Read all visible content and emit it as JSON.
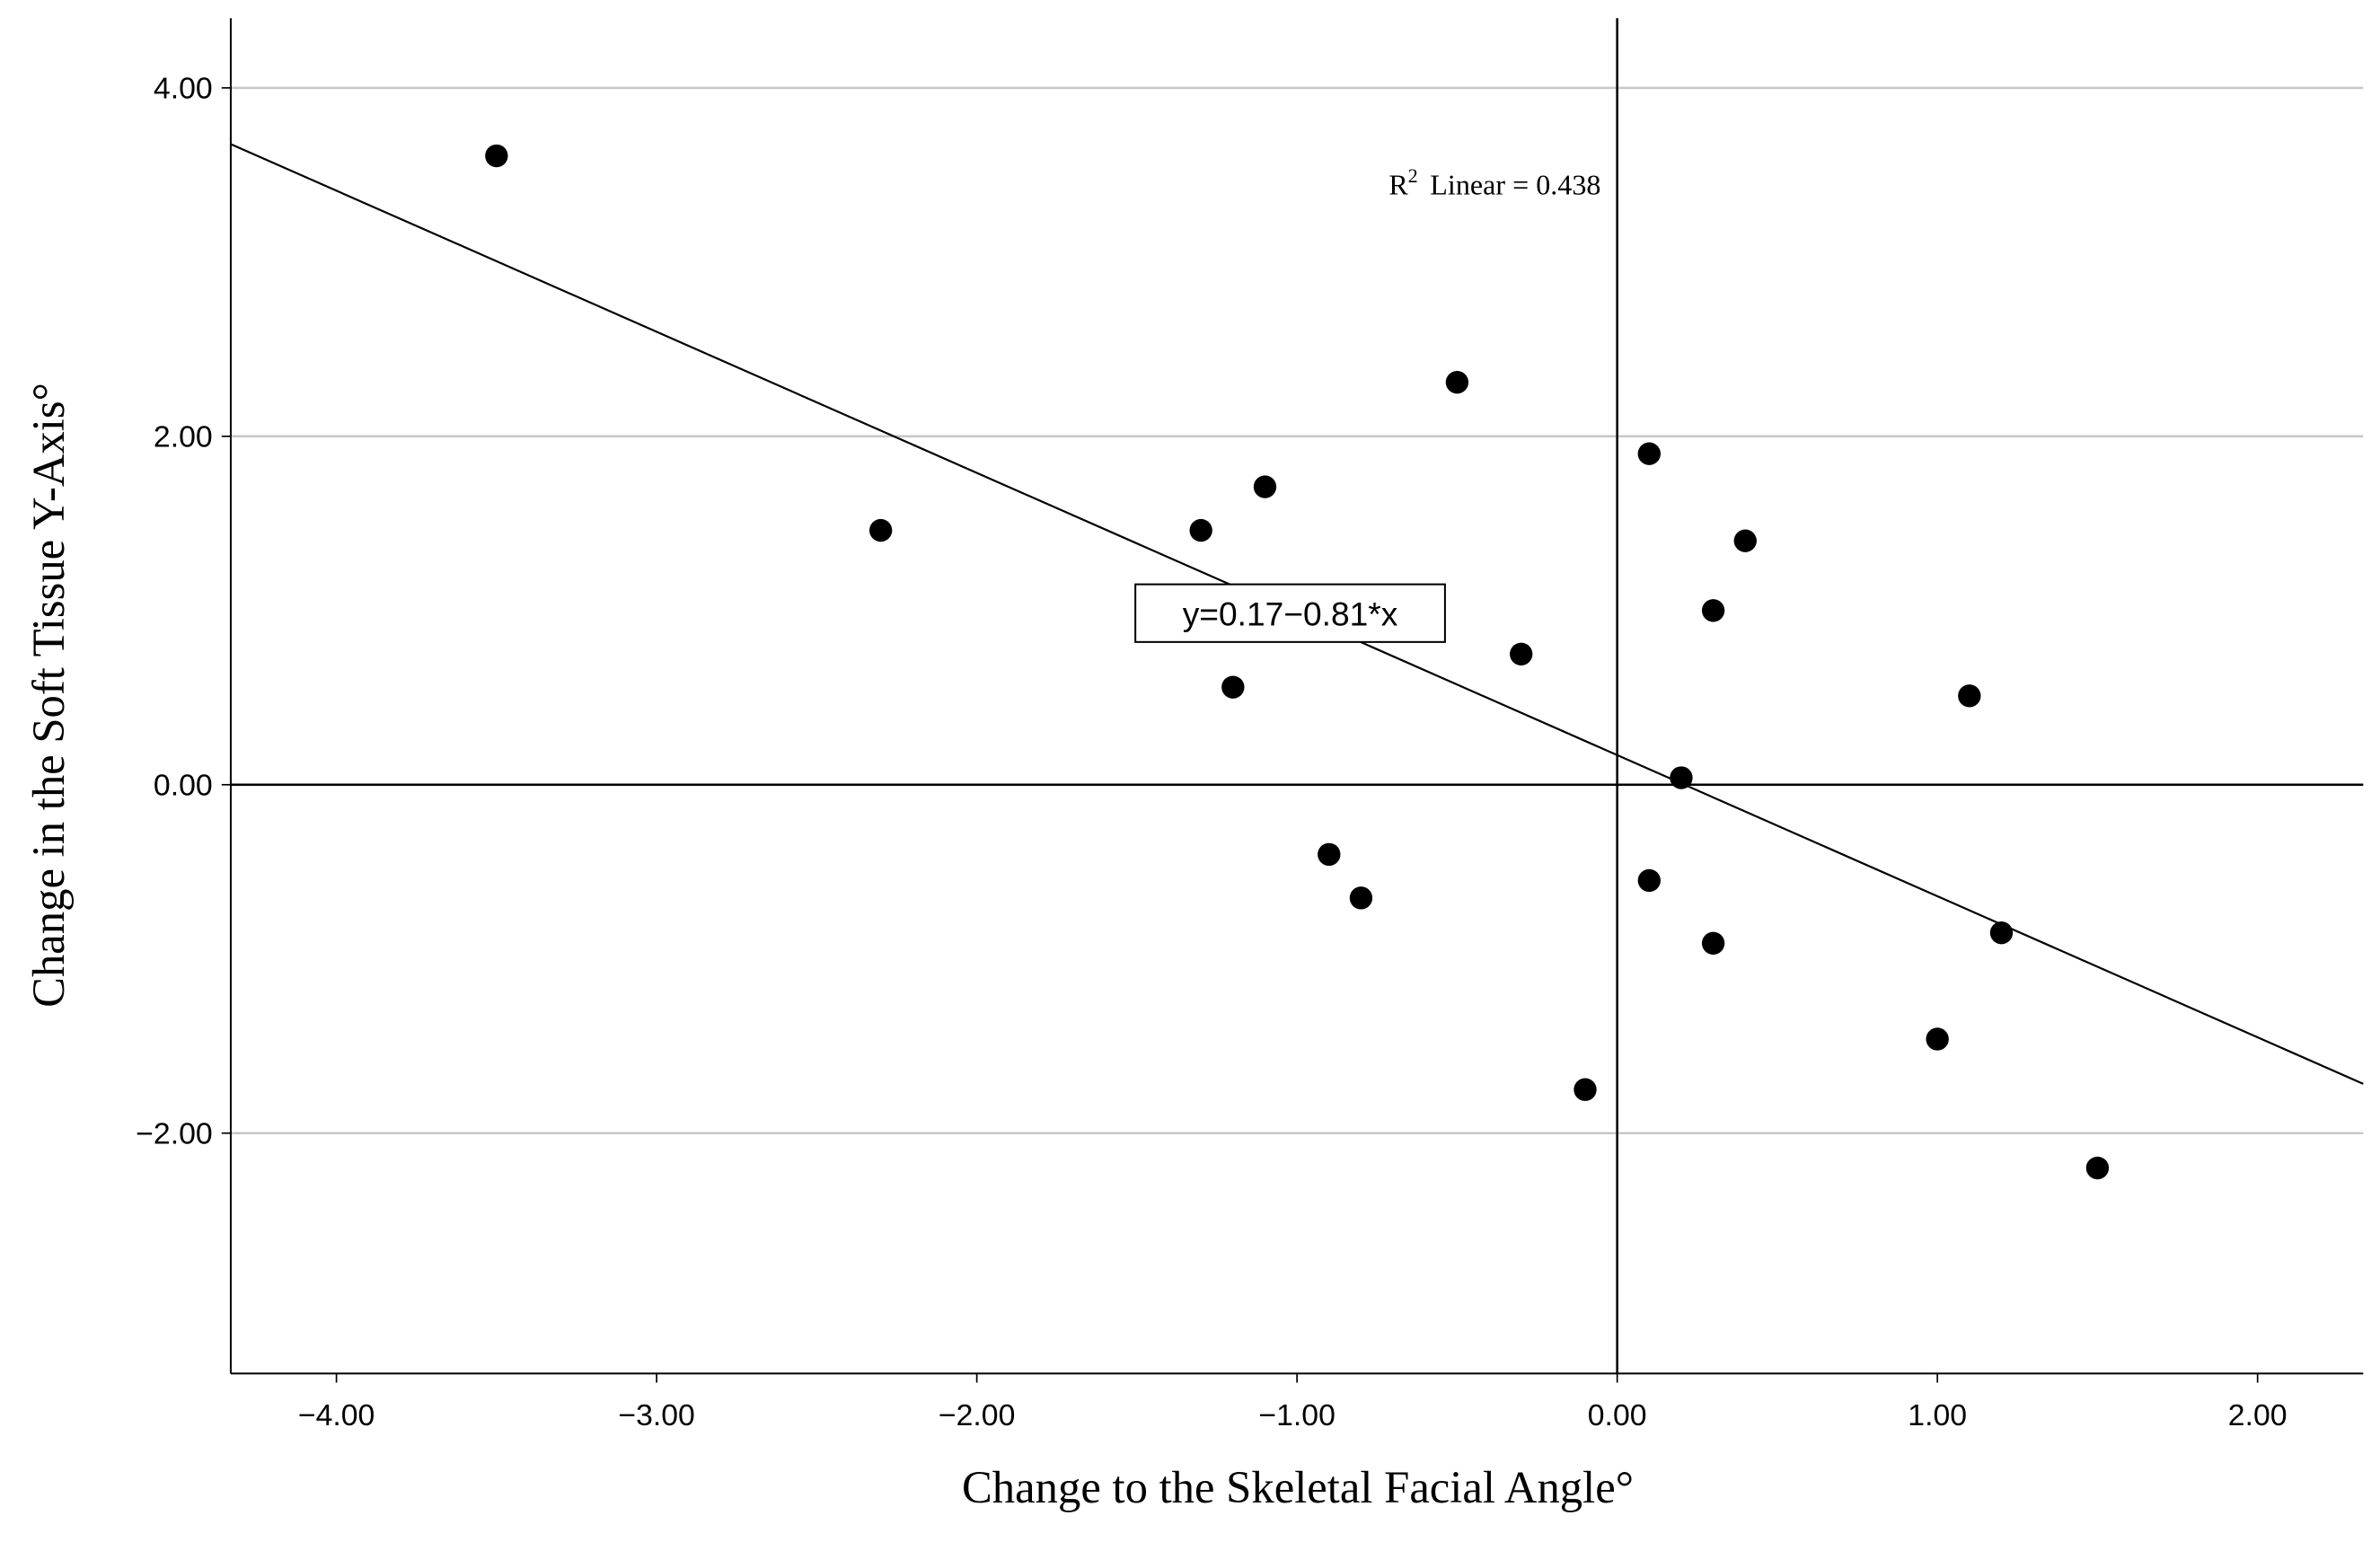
{
  "chart_data": {
    "type": "scatter",
    "x_label": "Change to the Skeletal Facial Angle°",
    "y_label": "Change in the Soft Tissue Y-Axis°",
    "x": [
      -3.5,
      -2.3,
      -1.3,
      -1.1,
      -1.2,
      -0.5,
      -0.3,
      -0.9,
      -0.8,
      -0.1,
      0.1,
      0.4,
      0.3,
      0.2,
      0.1,
      0.3,
      1.1,
      1.2,
      1.0,
      1.5
    ],
    "values": [
      3.61,
      1.46,
      1.46,
      1.71,
      0.56,
      2.31,
      0.75,
      -0.4,
      -0.65,
      -1.75,
      1.9,
      1.4,
      1.0,
      0.04,
      -0.55,
      -0.91,
      0.51,
      -0.85,
      -1.46,
      -2.2
    ],
    "color": "#000000",
    "xlim": [
      -4.33,
      2.33
    ],
    "ylim": [
      -3.38,
      4.4
    ],
    "xticks": [
      {
        "value": -4,
        "label": "−4.00"
      },
      {
        "value": -3,
        "label": "−3.00"
      },
      {
        "value": -2,
        "label": "−2.00"
      },
      {
        "value": -1,
        "label": "−1.00"
      },
      {
        "value": 0,
        "label": "0.00"
      },
      {
        "value": 1,
        "label": "1.00"
      },
      {
        "value": 2,
        "label": "2.00"
      }
    ],
    "yticks": [
      {
        "value": -2,
        "label": "−2.00"
      },
      {
        "value": 0,
        "label": "0.00"
      },
      {
        "value": 2,
        "label": "2.00"
      },
      {
        "value": 4,
        "label": "4.00"
      }
    ],
    "grid": true,
    "reference_lines": {
      "x": 0,
      "y": 0
    },
    "fit": {
      "intercept": 0.17,
      "slope": -0.81
    },
    "fit_equation": "y=0.17−0.81*x",
    "r2_annotation": {
      "symbol": "R",
      "superscript": "2",
      "text": "Linear = 0.438"
    }
  }
}
